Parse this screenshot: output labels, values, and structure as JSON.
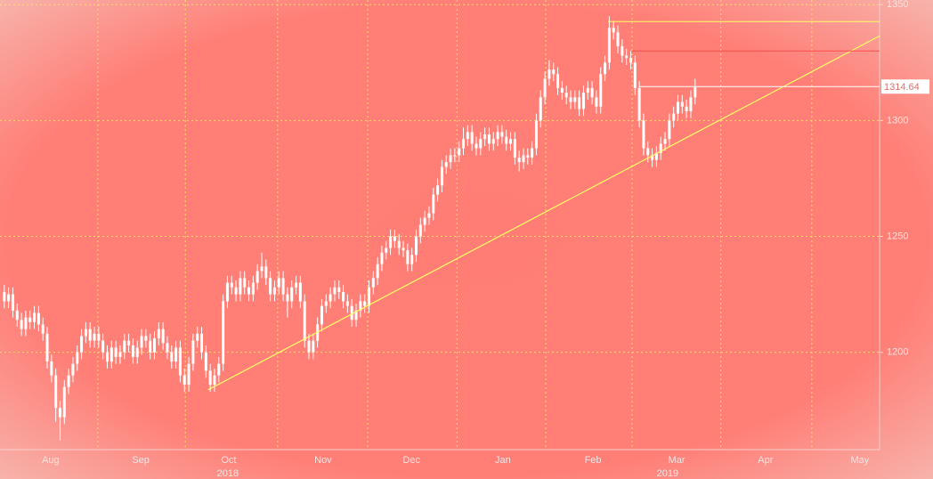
{
  "chart_data": {
    "type": "candlestick",
    "xlim": [
      0,
      205
    ],
    "ylim": [
      1158,
      1352
    ],
    "yticks": [
      1200,
      1250,
      1300,
      1350
    ],
    "xticks": [
      {
        "value": 11.8,
        "label": "Aug"
      },
      {
        "value": 32.8,
        "label": "Sep"
      },
      {
        "value": 53.3,
        "label": "Oct"
      },
      {
        "value": 75.3,
        "label": "Nov"
      },
      {
        "value": 95.9,
        "label": "Dec"
      },
      {
        "value": 117.2,
        "label": "Jan"
      },
      {
        "value": 138.2,
        "label": "Feb"
      },
      {
        "value": 157.7,
        "label": "Mar"
      },
      {
        "value": 178.4,
        "label": "Apr"
      },
      {
        "value": 200.4,
        "label": "May"
      }
    ],
    "year_ticks": [
      {
        "value": 53.1,
        "label": "2018"
      },
      {
        "value": 155.6,
        "label": "2019"
      }
    ],
    "xgrid": [
      22.8,
      43.2,
      64.7,
      85.7,
      106.5,
      127.2,
      147.3,
      168,
      189.2
    ],
    "grid": true,
    "grid_color": "#ffe066",
    "candle_color": "#ffffff",
    "x": [
      1,
      2,
      3,
      4,
      5,
      6,
      7,
      8,
      9,
      10,
      11,
      12,
      13,
      14,
      15,
      16,
      17,
      18,
      19,
      20,
      21,
      22,
      23,
      24,
      25,
      26,
      27,
      28,
      29,
      30,
      31,
      32,
      33,
      34,
      35,
      36,
      37,
      38,
      39,
      40,
      41,
      42,
      43,
      44,
      45,
      46,
      47,
      48,
      49,
      50,
      51,
      52,
      53,
      54,
      55,
      56,
      57,
      58,
      59,
      60,
      61,
      62,
      63,
      64,
      65,
      66,
      67,
      68,
      69,
      70,
      71,
      72,
      73,
      74,
      75,
      76,
      77,
      78,
      79,
      80,
      81,
      82,
      83,
      84,
      85,
      86,
      87,
      88,
      89,
      90,
      91,
      92,
      93,
      94,
      95,
      96,
      97,
      98,
      99,
      100,
      101,
      102,
      103,
      104,
      105,
      106,
      107,
      108,
      109,
      110,
      111,
      112,
      113,
      114,
      115,
      116,
      117,
      118,
      119,
      120,
      121,
      122,
      123,
      124,
      125,
      126,
      127,
      128,
      129,
      130,
      131,
      132,
      133,
      134,
      135,
      136,
      137,
      138,
      139,
      140,
      141,
      142,
      143,
      144,
      145,
      146,
      147,
      148,
      149,
      150,
      151,
      152,
      153,
      154,
      155,
      156,
      157,
      158,
      159,
      160,
      161,
      162
    ],
    "open": [
      1226,
      1222,
      1225,
      1218,
      1214,
      1210,
      1215,
      1213,
      1217,
      1212,
      1208,
      1196,
      1190,
      1176,
      1172,
      1185,
      1190,
      1195,
      1200,
      1207,
      1210,
      1205,
      1208,
      1205,
      1200,
      1196,
      1202,
      1198,
      1200,
      1205,
      1203,
      1198,
      1202,
      1207,
      1205,
      1200,
      1206,
      1210,
      1204,
      1200,
      1196,
      1202,
      1190,
      1186,
      1195,
      1205,
      1208,
      1200,
      1192,
      1186,
      1190,
      1195,
      1222,
      1230,
      1228,
      1225,
      1232,
      1228,
      1225,
      1230,
      1235,
      1237,
      1232,
      1225,
      1228,
      1232,
      1225,
      1222,
      1228,
      1230,
      1222,
      1205,
      1200,
      1205,
      1212,
      1220,
      1222,
      1225,
      1228,
      1226,
      1222,
      1220,
      1214,
      1218,
      1222,
      1220,
      1228,
      1232,
      1238,
      1243,
      1245,
      1250,
      1248,
      1245,
      1244,
      1238,
      1242,
      1250,
      1255,
      1258,
      1260,
      1268,
      1272,
      1280,
      1282,
      1285,
      1285,
      1288,
      1292,
      1295,
      1290,
      1288,
      1292,
      1294,
      1290,
      1292,
      1295,
      1293,
      1290,
      1292,
      1284,
      1282,
      1285,
      1284,
      1288,
      1300,
      1310,
      1318,
      1322,
      1320,
      1314,
      1312,
      1310,
      1308,
      1310,
      1305,
      1312,
      1314,
      1310,
      1306,
      1320,
      1325,
      1340,
      1338,
      1332,
      1328,
      1327,
      1325,
      1314,
      1300,
      1288,
      1285,
      1283,
      1286,
      1290,
      1292,
      1300,
      1303,
      1308,
      1306,
      1304,
      1310
    ],
    "high": [
      1229,
      1228,
      1228,
      1221,
      1217,
      1218,
      1218,
      1220,
      1220,
      1215,
      1211,
      1199,
      1193,
      1179,
      1188,
      1193,
      1198,
      1203,
      1210,
      1213,
      1213,
      1211,
      1211,
      1208,
      1203,
      1205,
      1205,
      1203,
      1208,
      1208,
      1206,
      1205,
      1210,
      1210,
      1208,
      1209,
      1213,
      1213,
      1207,
      1203,
      1205,
      1205,
      1193,
      1198,
      1208,
      1211,
      1211,
      1203,
      1195,
      1193,
      1198,
      1225,
      1233,
      1233,
      1231,
      1235,
      1235,
      1231,
      1233,
      1238,
      1243,
      1240,
      1235,
      1231,
      1235,
      1235,
      1228,
      1231,
      1233,
      1233,
      1225,
      1208,
      1208,
      1215,
      1223,
      1225,
      1228,
      1231,
      1231,
      1229,
      1225,
      1223,
      1221,
      1225,
      1225,
      1231,
      1235,
      1241,
      1246,
      1248,
      1253,
      1253,
      1251,
      1248,
      1247,
      1245,
      1253,
      1258,
      1261,
      1263,
      1271,
      1275,
      1283,
      1285,
      1288,
      1288,
      1291,
      1297,
      1298,
      1298,
      1293,
      1295,
      1297,
      1297,
      1295,
      1298,
      1298,
      1296,
      1295,
      1295,
      1287,
      1288,
      1288,
      1291,
      1303,
      1313,
      1321,
      1326,
      1325,
      1323,
      1317,
      1315,
      1313,
      1313,
      1313,
      1315,
      1317,
      1317,
      1313,
      1323,
      1328,
      1345,
      1343,
      1341,
      1335,
      1331,
      1330,
      1328,
      1317,
      1303,
      1291,
      1288,
      1289,
      1293,
      1295,
      1303,
      1306,
      1311,
      1311,
      1309,
      1313,
      1318
    ],
    "low": [
      1219,
      1219,
      1215,
      1211,
      1207,
      1207,
      1210,
      1210,
      1209,
      1205,
      1193,
      1187,
      1170,
      1162,
      1169,
      1182,
      1187,
      1192,
      1197,
      1204,
      1202,
      1202,
      1202,
      1197,
      1193,
      1193,
      1195,
      1195,
      1197,
      1200,
      1195,
      1195,
      1199,
      1202,
      1197,
      1197,
      1203,
      1201,
      1197,
      1193,
      1193,
      1187,
      1183,
      1183,
      1192,
      1202,
      1197,
      1189,
      1183,
      1183,
      1187,
      1192,
      1219,
      1225,
      1222,
      1222,
      1225,
      1222,
      1222,
      1227,
      1232,
      1229,
      1222,
      1222,
      1225,
      1222,
      1215,
      1219,
      1225,
      1219,
      1202,
      1197,
      1197,
      1202,
      1209,
      1217,
      1219,
      1222,
      1223,
      1219,
      1217,
      1211,
      1211,
      1215,
      1217,
      1217,
      1225,
      1229,
      1235,
      1240,
      1242,
      1245,
      1242,
      1241,
      1235,
      1235,
      1239,
      1247,
      1252,
      1255,
      1257,
      1265,
      1269,
      1277,
      1279,
      1282,
      1282,
      1285,
      1289,
      1287,
      1285,
      1285,
      1289,
      1287,
      1287,
      1289,
      1290,
      1287,
      1287,
      1281,
      1278,
      1279,
      1281,
      1281,
      1285,
      1297,
      1307,
      1315,
      1317,
      1311,
      1309,
      1307,
      1305,
      1305,
      1302,
      1302,
      1309,
      1307,
      1303,
      1303,
      1317,
      1322,
      1335,
      1329,
      1325,
      1324,
      1322,
      1311,
      1297,
      1285,
      1282,
      1280,
      1280,
      1283,
      1287,
      1289,
      1297,
      1300,
      1303,
      1301,
      1301,
      1307
    ],
    "close": [
      1222,
      1225,
      1218,
      1214,
      1210,
      1215,
      1213,
      1217,
      1212,
      1208,
      1196,
      1190,
      1176,
      1172,
      1185,
      1190,
      1195,
      1200,
      1207,
      1210,
      1205,
      1208,
      1205,
      1200,
      1196,
      1202,
      1198,
      1200,
      1205,
      1203,
      1198,
      1202,
      1207,
      1205,
      1200,
      1206,
      1210,
      1204,
      1200,
      1196,
      1202,
      1190,
      1186,
      1195,
      1205,
      1208,
      1200,
      1192,
      1186,
      1190,
      1195,
      1222,
      1230,
      1228,
      1225,
      1232,
      1228,
      1225,
      1230,
      1235,
      1237,
      1232,
      1225,
      1228,
      1232,
      1225,
      1222,
      1228,
      1230,
      1222,
      1205,
      1200,
      1205,
      1212,
      1220,
      1222,
      1225,
      1228,
      1226,
      1222,
      1220,
      1214,
      1218,
      1222,
      1220,
      1228,
      1232,
      1238,
      1243,
      1245,
      1250,
      1248,
      1245,
      1244,
      1238,
      1242,
      1250,
      1255,
      1258,
      1260,
      1268,
      1272,
      1280,
      1282,
      1285,
      1285,
      1288,
      1292,
      1295,
      1290,
      1288,
      1292,
      1294,
      1290,
      1292,
      1295,
      1293,
      1290,
      1292,
      1284,
      1282,
      1285,
      1284,
      1288,
      1300,
      1310,
      1318,
      1322,
      1320,
      1314,
      1312,
      1310,
      1308,
      1310,
      1305,
      1312,
      1314,
      1310,
      1306,
      1320,
      1325,
      1340,
      1338,
      1332,
      1328,
      1327,
      1325,
      1314,
      1300,
      1288,
      1285,
      1283,
      1286,
      1290,
      1292,
      1300,
      1303,
      1308,
      1306,
      1304,
      1310,
      1314.64
    ],
    "trendline": {
      "x": [
        48.5,
        205
      ],
      "y": [
        1183.8,
        1336.5
      ],
      "color": "#ffff66"
    },
    "hlines": [
      {
        "y": 1342.7,
        "x_start": 141.7,
        "color": "#ffff66"
      },
      {
        "y": 1330,
        "x_start": 147.3,
        "color": "#ff4d4d"
      },
      {
        "y": 1314.64,
        "x_start": 149,
        "color": "#ffffff"
      }
    ],
    "last_price": {
      "value": 1314.64,
      "label": "1314.64"
    }
  }
}
